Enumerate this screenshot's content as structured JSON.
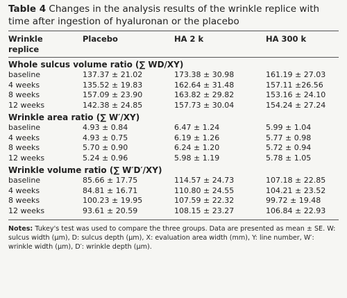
{
  "caption": {
    "label": "Table 4",
    "title": "Changes in the analysis results of the wrinkle replice with time after ingestion of hyaluronan or the placebo"
  },
  "table": {
    "header": [
      "Wrinkle replice",
      "Placebo",
      "HA 2 k",
      "HA 300 k"
    ],
    "sections": [
      {
        "heading": "Whole sulcus volume ratio (∑ WD/XY)",
        "rows": [
          [
            "baseline",
            "137.37 ± 21.02",
            "173.38 ± 30.98",
            "161.19 ± 27.03"
          ],
          [
            "4 weeks",
            "135.52 ± 19.83",
            "162.64 ± 31.48",
            "157.11 ±26.56"
          ],
          [
            "8 weeks",
            "157.09 ± 23.90",
            "163.82 ± 29.82",
            "153.16 ± 24.10"
          ],
          [
            "12 weeks",
            "142.38 ± 24.85",
            "157.73 ± 30.04",
            "154.24 ± 27.24"
          ]
        ]
      },
      {
        "heading": "Wrinkle area ratio (∑ W′/XY)",
        "rows": [
          [
            "baseline",
            "4.93 ± 0.84",
            "6.47 ± 1.24",
            "5.99 ± 1.04"
          ],
          [
            "4 weeks",
            "4.93 ± 0.75",
            "6.19 ± 1.26",
            "5.77 ± 0.98"
          ],
          [
            "8 weeks",
            "5.70 ± 0.90",
            "6.24 ± 1.20",
            "5.72 ± 0.94"
          ],
          [
            "12 weeks",
            "5.24 ± 0.96",
            "5.98 ± 1.19",
            "5.78 ± 1.05"
          ]
        ]
      },
      {
        "heading": "Wrinkle volume ratio (∑ W′D′/XY)",
        "rows": [
          [
            "baseline",
            "85.66 ± 17.75",
            "114.57 ± 24.73",
            "107.18 ± 22.85"
          ],
          [
            "4 weeks",
            "84.81 ± 16.71",
            "110.80 ± 24.55",
            "104.21 ± 23.52"
          ],
          [
            "8 weeks",
            "100.23 ± 19.95",
            "107.59 ± 22.32",
            "99.72 ± 19.48"
          ],
          [
            "12 weeks",
            "93.61 ± 20.59",
            "108.15 ± 23.27",
            "106.84 ± 22.93"
          ]
        ]
      }
    ]
  },
  "notes": {
    "label": "Notes:",
    "text": "Tukey's test was used to compare the three groups. Data are presented as mean ± SE. W: sulcus width (μm), D: sulcus depth (μm), X: evaluation area width (mm), Y: line number, W′: wrinkle width (μm), D′: wrinkle depth (μm)."
  }
}
